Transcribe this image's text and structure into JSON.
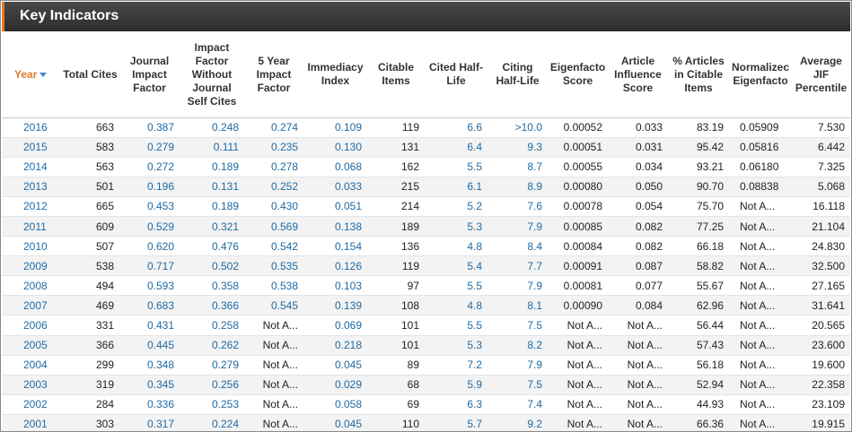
{
  "panel": {
    "title": "Key Indicators"
  },
  "columns": [
    "Year",
    "Total Cites",
    "Journal Impact Factor",
    "Impact Factor Without Journal Self Cites",
    "5 Year Impact Factor",
    "Immediacy Index",
    "Citable Items",
    "Cited Half-Life",
    "Citing Half-Life",
    "Eigenfacto Score",
    "Article Influence Score",
    "% Articles in Citable Items",
    "Normalizec Eigenfacto",
    "Average JIF Percentile"
  ],
  "rows": [
    [
      "2016",
      "663",
      "0.387",
      "0.248",
      "0.274",
      "0.109",
      "119",
      "6.6",
      ">10.0",
      "0.00052",
      "0.033",
      "83.19",
      "0.05909",
      "7.530"
    ],
    [
      "2015",
      "583",
      "0.279",
      "0.111",
      "0.235",
      "0.130",
      "131",
      "6.4",
      "9.3",
      "0.00051",
      "0.031",
      "95.42",
      "0.05816",
      "6.442"
    ],
    [
      "2014",
      "563",
      "0.272",
      "0.189",
      "0.278",
      "0.068",
      "162",
      "5.5",
      "8.7",
      "0.00055",
      "0.034",
      "93.21",
      "0.06180",
      "7.325"
    ],
    [
      "2013",
      "501",
      "0.196",
      "0.131",
      "0.252",
      "0.033",
      "215",
      "6.1",
      "8.9",
      "0.00080",
      "0.050",
      "90.70",
      "0.08838",
      "5.068"
    ],
    [
      "2012",
      "665",
      "0.453",
      "0.189",
      "0.430",
      "0.051",
      "214",
      "5.2",
      "7.6",
      "0.00078",
      "0.054",
      "75.70",
      "Not A...",
      "16.118"
    ],
    [
      "2011",
      "609",
      "0.529",
      "0.321",
      "0.569",
      "0.138",
      "189",
      "5.3",
      "7.9",
      "0.00085",
      "0.082",
      "77.25",
      "Not A...",
      "21.104"
    ],
    [
      "2010",
      "507",
      "0.620",
      "0.476",
      "0.542",
      "0.154",
      "136",
      "4.8",
      "8.4",
      "0.00084",
      "0.082",
      "66.18",
      "Not A...",
      "24.830"
    ],
    [
      "2009",
      "538",
      "0.717",
      "0.502",
      "0.535",
      "0.126",
      "119",
      "5.4",
      "7.7",
      "0.00091",
      "0.087",
      "58.82",
      "Not A...",
      "32.500"
    ],
    [
      "2008",
      "494",
      "0.593",
      "0.358",
      "0.538",
      "0.103",
      "97",
      "5.5",
      "7.9",
      "0.00081",
      "0.077",
      "55.67",
      "Not A...",
      "27.165"
    ],
    [
      "2007",
      "469",
      "0.683",
      "0.366",
      "0.545",
      "0.139",
      "108",
      "4.8",
      "8.1",
      "0.00090",
      "0.084",
      "62.96",
      "Not A...",
      "31.641"
    ],
    [
      "2006",
      "331",
      "0.431",
      "0.258",
      "Not A...",
      "0.069",
      "101",
      "5.5",
      "7.5",
      "Not A...",
      "Not A...",
      "56.44",
      "Not A...",
      "20.565"
    ],
    [
      "2005",
      "366",
      "0.445",
      "0.262",
      "Not A...",
      "0.218",
      "101",
      "5.3",
      "8.2",
      "Not A...",
      "Not A...",
      "57.43",
      "Not A...",
      "23.600"
    ],
    [
      "2004",
      "299",
      "0.348",
      "0.279",
      "Not A...",
      "0.045",
      "89",
      "7.2",
      "7.9",
      "Not A...",
      "Not A...",
      "56.18",
      "Not A...",
      "19.600"
    ],
    [
      "2003",
      "319",
      "0.345",
      "0.256",
      "Not A...",
      "0.029",
      "68",
      "5.9",
      "7.5",
      "Not A...",
      "Not A...",
      "52.94",
      "Not A...",
      "22.358"
    ],
    [
      "2002",
      "284",
      "0.336",
      "0.253",
      "Not A...",
      "0.058",
      "69",
      "6.3",
      "7.4",
      "Not A...",
      "Not A...",
      "44.93",
      "Not A...",
      "23.109"
    ],
    [
      "2001",
      "303",
      "0.317",
      "0.224",
      "Not A...",
      "0.045",
      "110",
      "5.7",
      "9.2",
      "Not A...",
      "Not A...",
      "66.36",
      "Not A...",
      "19.915"
    ]
  ]
}
